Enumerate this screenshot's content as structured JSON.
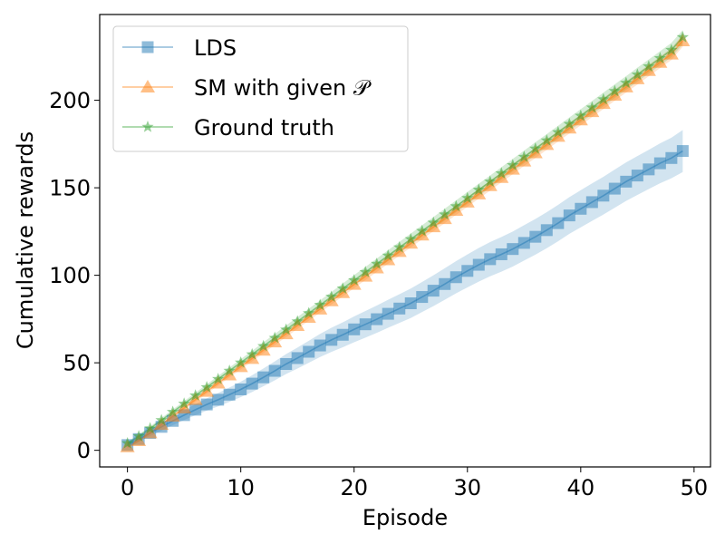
{
  "chart_data": {
    "type": "line",
    "xlabel": "Episode",
    "ylabel": "Cumulative rewards",
    "xlim": [
      -2.45,
      51.45
    ],
    "ylim": [
      -9.5,
      249
    ],
    "xticks": [
      0,
      10,
      20,
      30,
      40,
      50
    ],
    "yticks": [
      0,
      50,
      100,
      150,
      200
    ],
    "grid": false,
    "legend_position": "upper-left",
    "x": [
      0,
      1,
      2,
      3,
      4,
      5,
      6,
      7,
      8,
      9,
      10,
      11,
      12,
      13,
      14,
      15,
      16,
      17,
      18,
      19,
      20,
      21,
      22,
      23,
      24,
      25,
      26,
      27,
      28,
      29,
      30,
      31,
      32,
      33,
      34,
      35,
      36,
      37,
      38,
      39,
      40,
      41,
      42,
      43,
      44,
      45,
      46,
      47,
      48,
      49
    ],
    "series": [
      {
        "name": "LDS",
        "color": "#1f77b4",
        "marker": "square",
        "values": [
          3.0,
          6.4,
          9.9,
          13.4,
          16.8,
          20.1,
          23.2,
          26.2,
          28.9,
          31.8,
          34.8,
          38.1,
          41.7,
          45.4,
          49.3,
          52.7,
          56.3,
          59.9,
          63.1,
          66.0,
          69.1,
          72.0,
          74.9,
          78.0,
          81.0,
          84.0,
          87.6,
          91.2,
          95.0,
          98.9,
          102.5,
          106.0,
          109.2,
          112.0,
          115.0,
          118.5,
          122.0,
          125.8,
          129.8,
          134.2,
          138.0,
          141.8,
          145.5,
          149.5,
          153.5,
          157.0,
          160.5,
          164.0,
          167.0,
          171.0
        ],
        "band": [
          1.0,
          1.4,
          1.8,
          2.2,
          2.5,
          2.8,
          3.1,
          3.5,
          3.8,
          4.1,
          4.4,
          4.8,
          5.1,
          5.4,
          5.7,
          6.0,
          6.3,
          6.6,
          6.9,
          7.1,
          7.4,
          7.6,
          7.8,
          8.0,
          8.2,
          8.4,
          8.6,
          8.8,
          9.0,
          9.2,
          9.4,
          9.6,
          9.8,
          9.9,
          10.0,
          10.1,
          10.2,
          10.3,
          10.4,
          10.5,
          10.6,
          10.7,
          10.8,
          10.9,
          11.0,
          11.1,
          11.2,
          11.4,
          11.6,
          12.0
        ]
      },
      {
        "name": "SM with given 𝒫",
        "color": "#ff7f0e",
        "marker": "triangle",
        "values": [
          2.0,
          5.5,
          10.0,
          14.8,
          19.5,
          24.2,
          29.0,
          33.7,
          38.4,
          43.1,
          47.8,
          52.5,
          57.2,
          61.9,
          66.6,
          71.3,
          76.0,
          80.7,
          85.4,
          90.1,
          94.8,
          99.5,
          104.2,
          108.9,
          113.6,
          118.3,
          123.0,
          127.7,
          132.4,
          137.1,
          141.8,
          146.5,
          151.2,
          155.9,
          160.6,
          165.3,
          170.0,
          174.7,
          179.4,
          184.1,
          188.8,
          193.5,
          198.2,
          202.9,
          207.6,
          212.3,
          217.0,
          221.7,
          226.4,
          234.0
        ],
        "band": [
          0.8,
          0.9,
          1.0,
          1.1,
          1.2,
          1.2,
          1.3,
          1.4,
          1.5,
          1.5,
          1.6,
          1.7,
          1.7,
          1.8,
          1.9,
          1.9,
          2.0,
          2.0,
          2.1,
          2.1,
          2.2,
          2.2,
          2.3,
          2.3,
          2.4,
          2.4,
          2.5,
          2.5,
          2.6,
          2.6,
          2.7,
          2.7,
          2.8,
          2.8,
          2.9,
          2.9,
          3.0,
          3.0,
          3.0,
          3.1,
          3.1,
          3.1,
          3.2,
          3.2,
          3.2,
          3.3,
          3.3,
          3.3,
          3.4,
          3.4
        ]
      },
      {
        "name": "Ground truth",
        "color": "#2ca02c",
        "marker": "star",
        "values": [
          4.0,
          8.0,
          12.5,
          17.2,
          21.9,
          26.6,
          31.3,
          36.0,
          40.7,
          45.4,
          50.1,
          54.8,
          59.5,
          64.2,
          68.9,
          73.6,
          78.3,
          83.0,
          87.7,
          92.4,
          97.1,
          101.8,
          106.5,
          111.2,
          115.9,
          120.6,
          125.3,
          130.0,
          134.7,
          139.4,
          144.1,
          148.8,
          153.5,
          158.2,
          162.9,
          167.6,
          172.3,
          177.0,
          181.7,
          186.4,
          191.1,
          195.8,
          200.5,
          205.2,
          209.9,
          214.6,
          219.3,
          224.0,
          228.7,
          236.0
        ],
        "band": [
          1.0,
          1.1,
          1.2,
          1.3,
          1.4,
          1.5,
          1.6,
          1.7,
          1.8,
          1.9,
          2.0,
          2.1,
          2.2,
          2.3,
          2.4,
          2.5,
          2.6,
          2.7,
          2.8,
          2.9,
          3.0,
          3.0,
          3.1,
          3.1,
          3.2,
          3.2,
          3.3,
          3.3,
          3.4,
          3.4,
          3.5,
          3.5,
          3.5,
          3.6,
          3.6,
          3.6,
          3.7,
          3.7,
          3.7,
          3.8,
          3.8,
          3.8,
          3.9,
          3.9,
          3.9,
          4.0,
          4.0,
          4.0,
          4.1,
          4.1
        ]
      }
    ]
  }
}
